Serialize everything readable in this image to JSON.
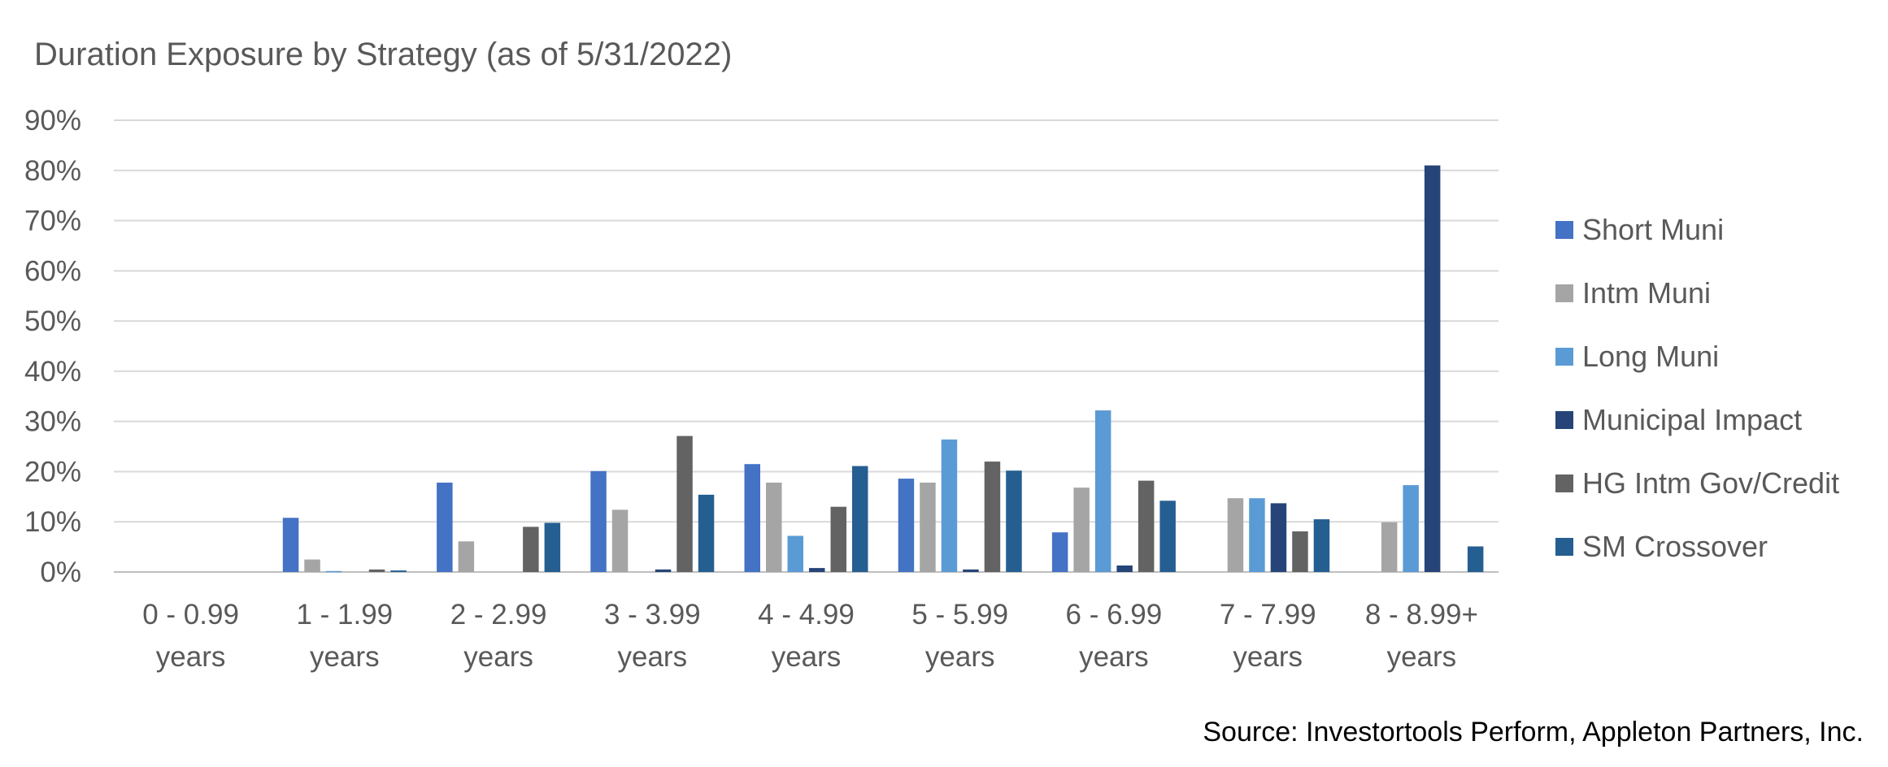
{
  "chart_data": {
    "type": "bar",
    "title": "Duration Exposure by Strategy (as of 5/31/2022)",
    "xlabel": "",
    "ylabel": "",
    "ylim": [
      0,
      90
    ],
    "y_ticks": [
      0,
      10,
      20,
      30,
      40,
      50,
      60,
      70,
      80,
      90
    ],
    "y_tick_labels": [
      "0%",
      "10%",
      "20%",
      "30%",
      "40%",
      "50%",
      "60%",
      "70%",
      "80%",
      "90%"
    ],
    "grid": true,
    "legend_position": "right",
    "categories": [
      [
        "0 - 0.99",
        "years"
      ],
      [
        "1 - 1.99",
        "years"
      ],
      [
        "2 - 2.99",
        "years"
      ],
      [
        "3 - 3.99",
        "years"
      ],
      [
        "4 - 4.99",
        "years"
      ],
      [
        "5 - 5.99",
        "years"
      ],
      [
        "6 - 6.99",
        "years"
      ],
      [
        "7 - 7.99",
        "years"
      ],
      [
        "8 - 8.99+",
        "years"
      ]
    ],
    "series": [
      {
        "name": "Short Muni",
        "color": "#4472C4",
        "values": [
          0,
          10.8,
          17.8,
          20.1,
          21.5,
          18.6,
          7.9,
          0,
          0
        ]
      },
      {
        "name": "Intm Muni",
        "color": "#A5A5A5",
        "values": [
          0,
          2.5,
          6.1,
          12.4,
          17.8,
          17.8,
          16.8,
          14.7,
          9.9
        ]
      },
      {
        "name": "Long Muni",
        "color": "#5B9BD5",
        "values": [
          0,
          0.2,
          0,
          0,
          7.2,
          26.4,
          32.2,
          14.7,
          17.3
        ]
      },
      {
        "name": "Municipal Impact",
        "color": "#264478",
        "values": [
          0,
          0,
          0,
          0.5,
          0.8,
          0.5,
          1.3,
          13.7,
          81.0
        ]
      },
      {
        "name": "HG Intm Gov/Credit",
        "color": "#636363",
        "values": [
          0,
          0.5,
          9.0,
          27.1,
          13.0,
          22.0,
          18.2,
          8.1,
          0
        ]
      },
      {
        "name": "SM Crossover",
        "color": "#255E91",
        "values": [
          0,
          0.3,
          9.8,
          15.4,
          21.1,
          20.2,
          14.2,
          10.5,
          5.1
        ]
      }
    ]
  },
  "source": "Source: Investortools Perform, Appleton Partners, Inc."
}
